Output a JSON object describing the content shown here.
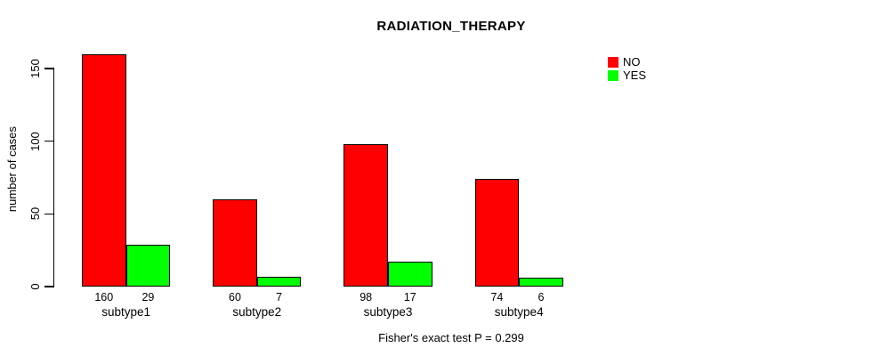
{
  "chart_data": {
    "type": "bar",
    "title": "RADIATION_THERAPY",
    "xlabel": "",
    "ylabel": "number of cases",
    "categories": [
      "subtype1",
      "subtype2",
      "subtype3",
      "subtype4"
    ],
    "series": [
      {
        "name": "NO",
        "color": "#ff0000",
        "values": [
          160,
          60,
          98,
          74
        ]
      },
      {
        "name": "YES",
        "color": "#00ff00",
        "values": [
          29,
          7,
          17,
          6
        ]
      }
    ],
    "show_bar_value_labels": true,
    "ylim": [
      0,
      160
    ],
    "yticks": [
      0,
      50,
      100,
      150
    ],
    "grid": false,
    "legend_position": "top-right-outside",
    "legend": [
      "NO",
      "YES"
    ],
    "annotation": "Fisher's exact test P = 0.299",
    "colors": {
      "series_no": "#ff0000",
      "series_yes": "#00ff00",
      "axis": "#000000",
      "text": "#000000",
      "background": "#ffffff"
    }
  }
}
